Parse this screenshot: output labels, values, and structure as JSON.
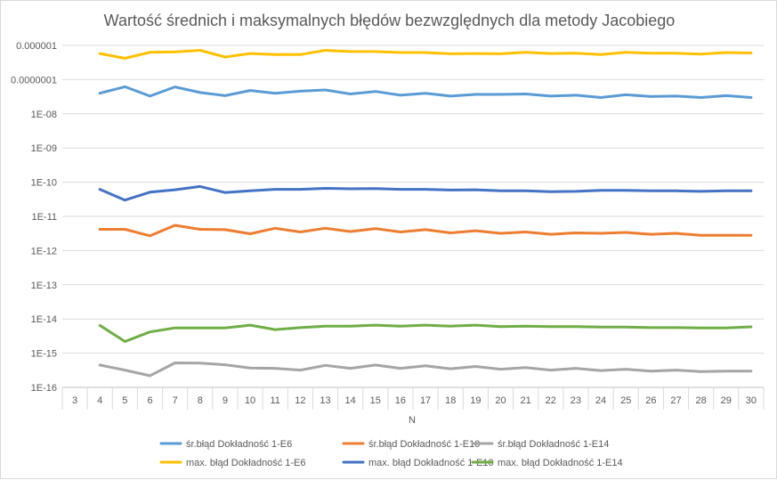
{
  "chart_data": {
    "type": "line",
    "title": "Wartość średnich i maksymalnych błędów bezwzględnych dla metody Jacobiego",
    "xlabel": "N",
    "ylabel": "",
    "yscale": "log",
    "ylim": [
      1e-16,
      1e-06
    ],
    "grid": true,
    "legend_position": "bottom",
    "categories": [
      "3",
      "4",
      "5",
      "6",
      "7",
      "8",
      "9",
      "10",
      "11",
      "12",
      "13",
      "14",
      "15",
      "16",
      "17",
      "18",
      "19",
      "20",
      "21",
      "22",
      "23",
      "24",
      "25",
      "26",
      "27",
      "28",
      "29",
      "30"
    ],
    "y_tick_labels": [
      "0.000001",
      "0.0000001",
      "1E-08",
      "1E-09",
      "1E-10",
      "1E-11",
      "1E-12",
      "1E-13",
      "1E-14",
      "1E-15",
      "1E-16"
    ],
    "series": [
      {
        "name": "śr.błąd Dokładność 1-E6",
        "color": "#5b9bd5",
        "values": [
          null,
          4e-08,
          6.2e-08,
          3.3e-08,
          6.1e-08,
          4.2e-08,
          3.4e-08,
          4.8e-08,
          4e-08,
          4.6e-08,
          5e-08,
          3.8e-08,
          4.5e-08,
          3.5e-08,
          4e-08,
          3.3e-08,
          3.7e-08,
          3.7e-08,
          3.8e-08,
          3.3e-08,
          3.5e-08,
          3e-08,
          3.6e-08,
          3.2e-08,
          3.3e-08,
          3e-08,
          3.4e-08,
          3e-08
        ]
      },
      {
        "name": "śr.błąd Dokładność 1-E10",
        "color": "#ed7d31",
        "values": [
          null,
          4.2e-12,
          4.2e-12,
          2.7e-12,
          5.5e-12,
          4.2e-12,
          4.1e-12,
          3.1e-12,
          4.5e-12,
          3.5e-12,
          4.5e-12,
          3.6e-12,
          4.4e-12,
          3.5e-12,
          4.1e-12,
          3.3e-12,
          3.8e-12,
          3.2e-12,
          3.5e-12,
          3e-12,
          3.3e-12,
          3.2e-12,
          3.4e-12,
          3e-12,
          3.2e-12,
          2.8e-12,
          2.8e-12,
          2.8e-12
        ]
      },
      {
        "name": "śr.błąd Dokładność 1-E14",
        "color": "#a5a5a5",
        "values": [
          null,
          4.5e-16,
          3.2e-16,
          2.2e-16,
          5.2e-16,
          5.1e-16,
          4.6e-16,
          3.7e-16,
          3.6e-16,
          3.2e-16,
          4.4e-16,
          3.6e-16,
          4.5e-16,
          3.6e-16,
          4.3e-16,
          3.5e-16,
          4.1e-16,
          3.4e-16,
          3.8e-16,
          3.2e-16,
          3.6e-16,
          3.1e-16,
          3.4e-16,
          3e-16,
          3.2e-16,
          2.9e-16,
          3e-16,
          3e-16
        ]
      },
      {
        "name": "max. błąd Dokładność 1-E6",
        "color": "#ffc000",
        "values": [
          null,
          5.8e-07,
          4.2e-07,
          6.3e-07,
          6.5e-07,
          7.2e-07,
          4.6e-07,
          5.8e-07,
          5.4e-07,
          5.4e-07,
          7.2e-07,
          6.6e-07,
          6.6e-07,
          6.2e-07,
          6.2e-07,
          5.7e-07,
          5.8e-07,
          5.7e-07,
          6.3e-07,
          5.8e-07,
          5.9e-07,
          5.4e-07,
          6.3e-07,
          5.9e-07,
          5.9e-07,
          5.6e-07,
          6.2e-07,
          6e-07
        ]
      },
      {
        "name": "max. błąd Dokładność 1-E10",
        "color": "#4472c4",
        "values": [
          null,
          6.2e-11,
          3e-11,
          5.1e-11,
          6e-11,
          7.5e-11,
          5e-11,
          5.6e-11,
          6.2e-11,
          6.2e-11,
          6.6e-11,
          6.4e-11,
          6.5e-11,
          6.2e-11,
          6.2e-11,
          5.9e-11,
          6e-11,
          5.6e-11,
          5.6e-11,
          5.3e-11,
          5.4e-11,
          5.8e-11,
          5.8e-11,
          5.6e-11,
          5.6e-11,
          5.4e-11,
          5.6e-11,
          5.6e-11
        ]
      },
      {
        "name": "max. błąd Dokładność 1-E14",
        "color": "#70ad47",
        "values": [
          null,
          6.5e-15,
          2.2e-15,
          4.2e-15,
          5.5e-15,
          5.5e-15,
          5.5e-15,
          6.6e-15,
          4.9e-15,
          5.6e-15,
          6.2e-15,
          6.2e-15,
          6.6e-15,
          6.2e-15,
          6.6e-15,
          6.2e-15,
          6.6e-15,
          6e-15,
          6.2e-15,
          6e-15,
          6e-15,
          5.8e-15,
          5.8e-15,
          5.6e-15,
          5.6e-15,
          5.5e-15,
          5.5e-15,
          5.9e-15
        ]
      }
    ]
  }
}
